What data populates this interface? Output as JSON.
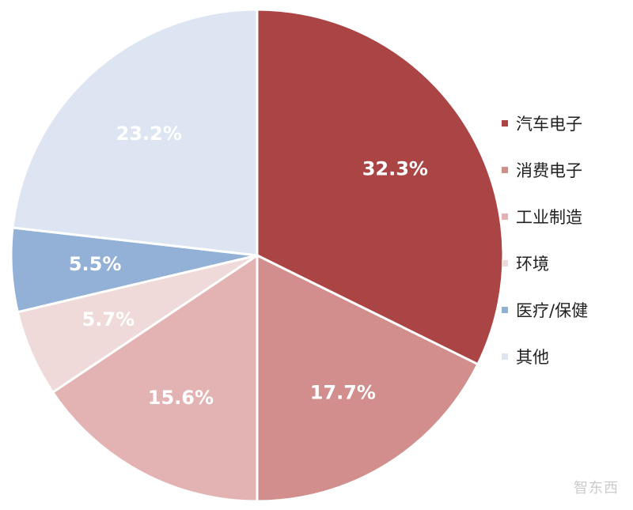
{
  "chart_data": {
    "type": "pie",
    "title": "",
    "slices": [
      {
        "label": "汽车电子",
        "value": 32.3,
        "display": "32.3%",
        "color": "#ab4545"
      },
      {
        "label": "消费电子",
        "value": 17.7,
        "display": "17.7%",
        "color": "#d18e8d"
      },
      {
        "label": "工业制造",
        "value": 15.6,
        "display": "15.6%",
        "color": "#e2b3b2"
      },
      {
        "label": "环境",
        "value": 5.7,
        "display": "5.7%",
        "color": "#efd9d9"
      },
      {
        "label": "医疗/保健",
        "value": 5.5,
        "display": "5.5%",
        "color": "#93b0d6"
      },
      {
        "label": "其他",
        "value": 23.2,
        "display": "23.2%",
        "color": "#dce5f1"
      }
    ],
    "legend_position": "right",
    "start_angle": "12 o'clock",
    "direction": "clockwise"
  },
  "watermark": "智东西"
}
